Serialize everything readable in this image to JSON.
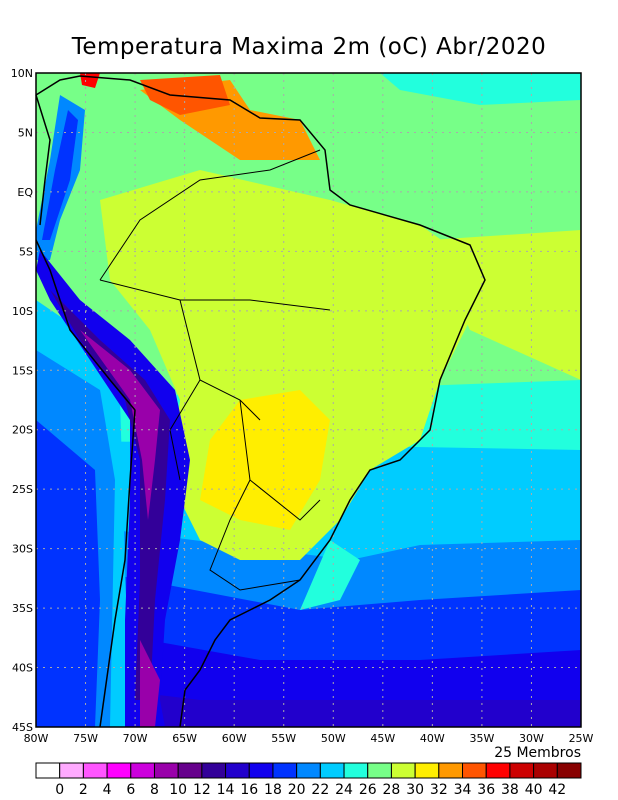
{
  "title": "Temperatura Maxima 2m (oC) Abr/2020",
  "members_label": "25 Membros",
  "lat_labels": [
    "10N",
    "5N",
    "EQ",
    "5S",
    "10S",
    "15S",
    "20S",
    "25S",
    "30S",
    "35S",
    "40S",
    "45S"
  ],
  "lon_labels": [
    "80W",
    "75W",
    "70W",
    "65W",
    "60W",
    "55W",
    "50W",
    "45W",
    "40W",
    "35W",
    "30W",
    "25W"
  ],
  "colorbar": {
    "labels": [
      "0",
      "2",
      "4",
      "6",
      "8",
      "10",
      "12",
      "14",
      "16",
      "18",
      "20",
      "22",
      "24",
      "26",
      "28",
      "30",
      "32",
      "34",
      "36",
      "38",
      "40",
      "42"
    ],
    "colors": [
      "#ffffff",
      "#ffaaff",
      "#ff55ff",
      "#ff00ff",
      "#cc00dd",
      "#9900aa",
      "#66008c",
      "#330099",
      "#2200cc",
      "#1100ee",
      "#0033ff",
      "#0088ff",
      "#00ccff",
      "#22ffdd",
      "#77ff88",
      "#ccff33",
      "#ffee00",
      "#ff9900",
      "#ff5500",
      "#ff0000",
      "#cc0000",
      "#aa0000",
      "#880000"
    ]
  }
}
